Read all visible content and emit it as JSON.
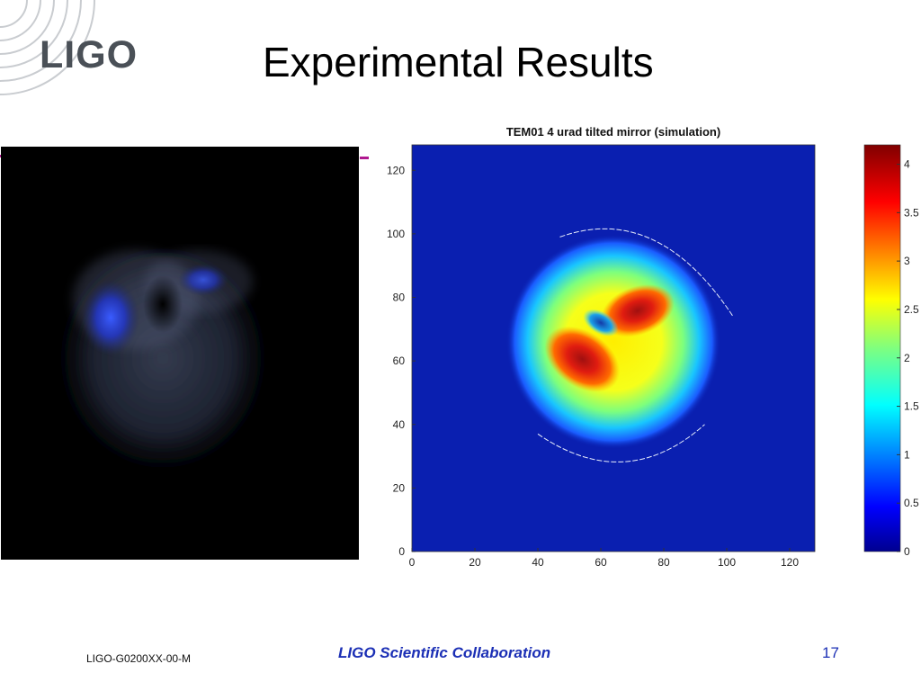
{
  "logo": {
    "text": "LIGO"
  },
  "slide": {
    "title": "Experimental Results"
  },
  "left_image": {
    "description_icon": "camera-beam-profile-image"
  },
  "chart_data": [
    {
      "type": "heatmap",
      "title": "TEM01 4 urad tilted mirror (simulation)",
      "xlabel": "",
      "ylabel": "",
      "xlim": [
        0,
        128
      ],
      "ylim": [
        0,
        128
      ],
      "xticks": [
        0,
        20,
        40,
        60,
        80,
        100,
        120
      ],
      "yticks": [
        0,
        20,
        40,
        60,
        80,
        100,
        120
      ],
      "colormap": "jet",
      "background_color": "#0a1fb0",
      "features": {
        "main_lobe_center": [
          64,
          66
        ],
        "main_lobe_radius": 22,
        "peak_value": 4.2,
        "dark_hole_center": [
          60,
          72
        ]
      },
      "colorbar": {
        "range": [
          0,
          4.2
        ],
        "ticks": [
          0,
          0.5,
          1,
          1.5,
          2,
          2.5,
          3,
          3.5,
          4
        ],
        "tick_labels": [
          "0",
          "0.5",
          "1",
          "1.5",
          "2",
          "2.5",
          "3",
          "3.5",
          "4"
        ]
      }
    }
  ],
  "footer": {
    "doc_id": "LIGO-G0200XX-00-M",
    "collaboration": "LIGO Scientific Collaboration",
    "page_number": "17"
  }
}
